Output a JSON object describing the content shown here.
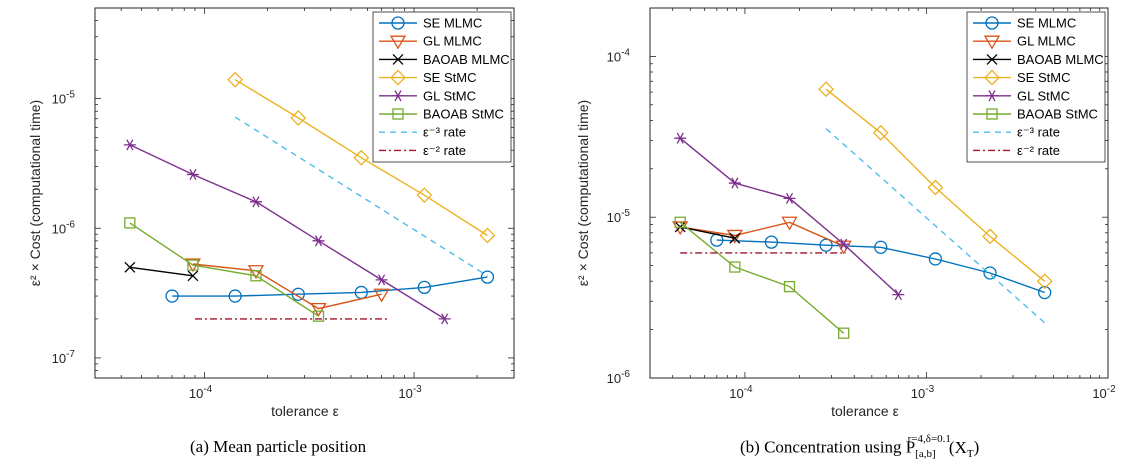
{
  "chart_data": [
    {
      "type": "line",
      "xscale": "log",
      "yscale": "log",
      "xlim": [
        3e-05,
        0.003
      ],
      "ylim": [
        7e-08,
        5e-05
      ],
      "xlabel": "tolerance ε",
      "ylabel": "ε² × Cost (computational time)",
      "xticks": [
        {
          "value": 0.0001,
          "base": "10",
          "exp": "-4"
        },
        {
          "value": 0.001,
          "base": "10",
          "exp": "-3"
        }
      ],
      "yticks": [
        {
          "value": 1e-07,
          "base": "10",
          "exp": "-7"
        },
        {
          "value": 1e-06,
          "base": "10",
          "exp": "-6"
        },
        {
          "value": 1e-05,
          "base": "10",
          "exp": "-5"
        }
      ],
      "caption": "(a) Mean particle position",
      "legend_position": "top-right",
      "series": [
        {
          "name": "SE MLMC",
          "color": "#0072BD",
          "marker": "circle",
          "dash": "",
          "x": [
            7e-05,
            0.00014,
            0.00028,
            0.00056,
            0.00112,
            0.00224
          ],
          "y": [
            3e-07,
            3e-07,
            3.1e-07,
            3.2e-07,
            3.5e-07,
            4.2e-07
          ]
        },
        {
          "name": "GL MLMC",
          "color": "#D95319",
          "marker": "triangle-down",
          "dash": "",
          "x": [
            8.8e-05,
            0.000176,
            0.00035,
            0.0007
          ],
          "y": [
            5.3e-07,
            4.7e-07,
            2.4e-07,
            3.1e-07
          ]
        },
        {
          "name": "BAOAB MLMC",
          "color": "#000000",
          "marker": "x",
          "dash": "",
          "x": [
            4.4e-05,
            8.8e-05
          ],
          "y": [
            5e-07,
            4.3e-07
          ]
        },
        {
          "name": "SE StMC",
          "color": "#EDB120",
          "marker": "diamond",
          "dash": "",
          "x": [
            0.00014,
            0.00028,
            0.00056,
            0.00112,
            0.00224
          ],
          "y": [
            1.4e-05,
            7.1e-06,
            3.5e-06,
            1.8e-06,
            8.8e-07
          ]
        },
        {
          "name": "GL StMC",
          "color": "#7E2F8E",
          "marker": "asterisk",
          "dash": "",
          "x": [
            4.4e-05,
            8.8e-05,
            0.000176,
            0.00035,
            0.0007,
            0.0014
          ],
          "y": [
            4.4e-06,
            2.6e-06,
            1.6e-06,
            8e-07,
            4e-07,
            2e-07
          ]
        },
        {
          "name": "BAOAB StMC",
          "color": "#77AC30",
          "marker": "square",
          "dash": "",
          "x": [
            4.4e-05,
            8.8e-05,
            0.000176,
            0.00035
          ],
          "y": [
            1.1e-06,
            5.2e-07,
            4.3e-07,
            2.1e-07
          ]
        },
        {
          "name": "ε⁻³ rate",
          "color": "#4DBEEE",
          "marker": "none",
          "dash": "6,5",
          "x": [
            0.00014,
            0.00224
          ],
          "y": [
            7.2e-06,
            4.3e-07
          ]
        },
        {
          "name": "ε⁻² rate",
          "color": "#A2142F",
          "marker": "none",
          "dash": "7,3,2,3",
          "x": [
            9e-05,
            0.00075
          ],
          "y": [
            2e-07,
            2e-07
          ]
        }
      ]
    },
    {
      "type": "line",
      "xscale": "log",
      "yscale": "log",
      "xlim": [
        3e-05,
        0.01
      ],
      "ylim": [
        1e-06,
        0.0002
      ],
      "xlabel": "tolerance ε",
      "ylabel": "ε² × Cost (computational time)",
      "xticks": [
        {
          "value": 0.0001,
          "base": "10",
          "exp": "-4"
        },
        {
          "value": 0.001,
          "base": "10",
          "exp": "-3"
        },
        {
          "value": 0.01,
          "base": "10",
          "exp": "-2"
        }
      ],
      "yticks": [
        {
          "value": 1e-06,
          "base": "10",
          "exp": "-6"
        },
        {
          "value": 1e-05,
          "base": "10",
          "exp": "-5"
        },
        {
          "value": 0.0001,
          "base": "10",
          "exp": "-4"
        }
      ],
      "caption": "(b) Concentration using P",
      "caption_sub": "[a,b]",
      "caption_sup": "r=4,δ=0.1",
      "caption_tail": "(X",
      "caption_tail_sub": "T",
      "caption_end": ")",
      "legend_position": "top-right",
      "series": [
        {
          "name": "SE MLMC",
          "color": "#0072BD",
          "marker": "circle",
          "dash": "",
          "x": [
            7e-05,
            0.00014,
            0.00028,
            0.00056,
            0.00112,
            0.00224,
            0.00448
          ],
          "y": [
            7.2e-06,
            7e-06,
            6.7e-06,
            6.5e-06,
            5.5e-06,
            4.5e-06,
            3.4e-06
          ]
        },
        {
          "name": "GL MLMC",
          "color": "#D95319",
          "marker": "triangle-down",
          "dash": "",
          "x": [
            4.4e-05,
            8.8e-05,
            0.000176,
            0.00035
          ],
          "y": [
            8.7e-06,
            7.7e-06,
            9.3e-06,
            6.6e-06
          ]
        },
        {
          "name": "BAOAB MLMC",
          "color": "#000000",
          "marker": "x",
          "dash": "",
          "x": [
            4.4e-05,
            8.8e-05
          ],
          "y": [
            8.7e-06,
            7.4e-06
          ]
        },
        {
          "name": "SE StMC",
          "color": "#EDB120",
          "marker": "diamond",
          "dash": "",
          "x": [
            0.00028,
            0.00056,
            0.00112,
            0.00224,
            0.00448
          ],
          "y": [
            6.25e-05,
            3.35e-05,
            1.53e-05,
            7.6e-06,
            4e-06
          ]
        },
        {
          "name": "GL StMC",
          "color": "#7E2F8E",
          "marker": "asterisk",
          "dash": "",
          "x": [
            4.4e-05,
            8.8e-05,
            0.000176,
            0.00035,
            0.0007
          ],
          "y": [
            3.1e-05,
            1.63e-05,
            1.31e-05,
            6.8e-06,
            3.3e-06
          ]
        },
        {
          "name": "BAOAB StMC",
          "color": "#77AC30",
          "marker": "square",
          "dash": "",
          "x": [
            4.4e-05,
            8.8e-05,
            0.000176,
            0.00035
          ],
          "y": [
            9.3e-06,
            4.9e-06,
            3.7e-06,
            1.9e-06
          ]
        },
        {
          "name": "ε⁻³ rate",
          "color": "#4DBEEE",
          "marker": "none",
          "dash": "6,5",
          "x": [
            0.00028,
            0.00448
          ],
          "y": [
            3.55e-05,
            2.2e-06
          ]
        },
        {
          "name": "ε⁻² rate",
          "color": "#A2142F",
          "marker": "none",
          "dash": "7,3,2,3",
          "x": [
            4.4e-05,
            0.00036
          ],
          "y": [
            6e-06,
            6e-06
          ]
        }
      ]
    }
  ]
}
